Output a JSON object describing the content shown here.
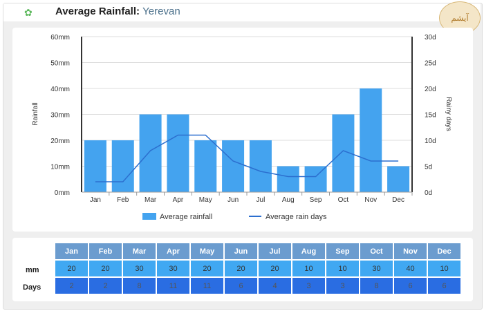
{
  "header": {
    "title": "Average Rainfall:",
    "city": "Yerevan",
    "logo_text": "آیشم",
    "icon": "plant-icon"
  },
  "chart_data": {
    "type": "bar",
    "categories": [
      "Jan",
      "Feb",
      "Mar",
      "Apr",
      "May",
      "Jun",
      "Jul",
      "Aug",
      "Sep",
      "Oct",
      "Nov",
      "Dec"
    ],
    "series": [
      {
        "name": "Average rainfall",
        "type": "bar",
        "axis": "left",
        "values": [
          20,
          20,
          30,
          30,
          20,
          20,
          20,
          10,
          10,
          30,
          40,
          10
        ],
        "color": "#44a3ef"
      },
      {
        "name": "Average rain days",
        "type": "line",
        "axis": "right",
        "values": [
          2,
          2,
          8,
          11,
          11,
          6,
          4,
          3,
          3,
          8,
          6,
          6
        ],
        "color": "#2c6fcf"
      }
    ],
    "ylabel": "Rainfall",
    "y2label": "Rainy days",
    "ylim": [
      0,
      60
    ],
    "y2lim": [
      0,
      30
    ],
    "yticks": [
      "0mm",
      "10mm",
      "20mm",
      "30mm",
      "40mm",
      "50mm",
      "60mm"
    ],
    "y2ticks": [
      "0d",
      "5d",
      "10d",
      "15d",
      "20d",
      "25d",
      "30d"
    ],
    "legend": "bottom"
  },
  "table": {
    "row_labels": [
      "mm",
      "Days"
    ]
  }
}
